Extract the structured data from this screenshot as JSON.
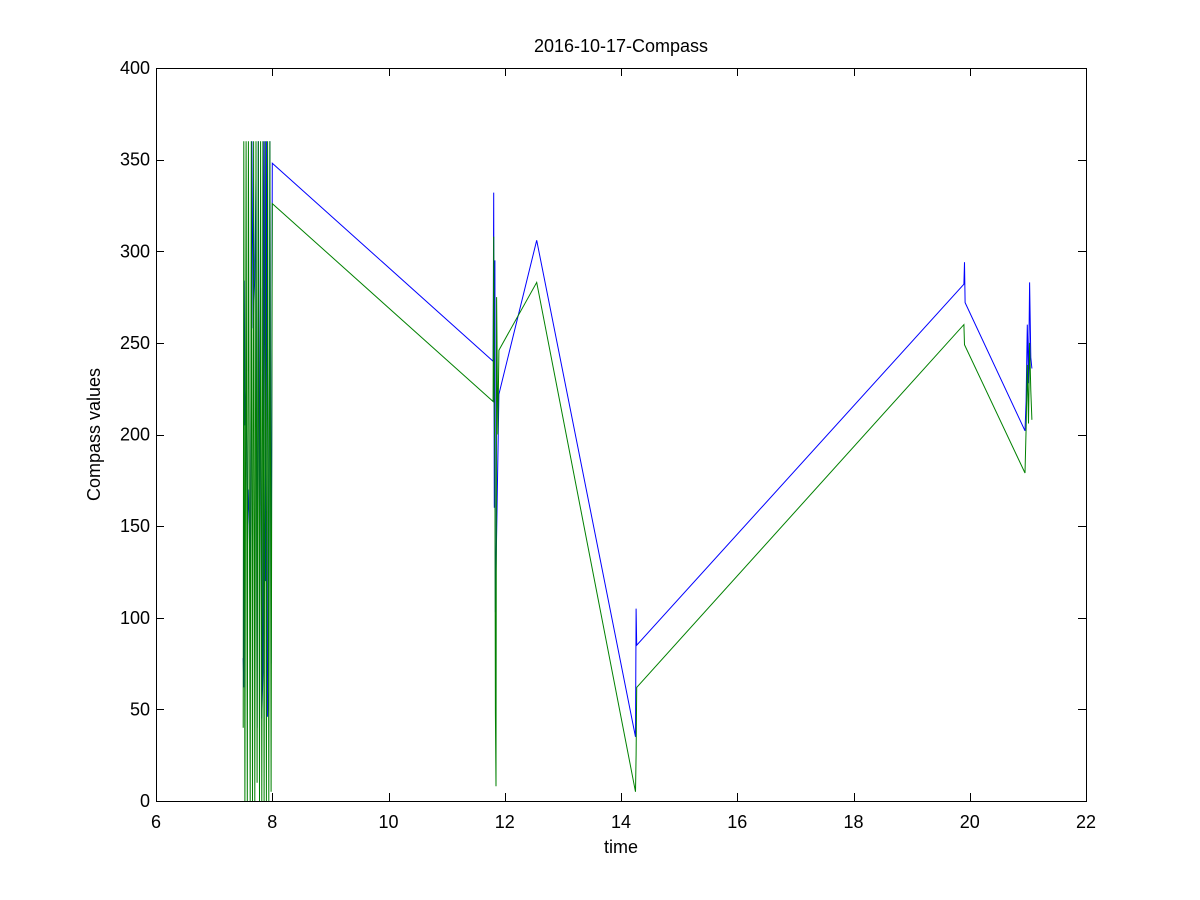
{
  "chart_data": {
    "type": "line",
    "title": "2016-10-17-Compass",
    "xlabel": "time",
    "ylabel": "Compass values",
    "xlim": [
      6,
      22
    ],
    "ylim": [
      0,
      400
    ],
    "xticks": [
      6,
      8,
      10,
      12,
      14,
      16,
      18,
      20,
      22
    ],
    "yticks": [
      0,
      50,
      100,
      150,
      200,
      250,
      300,
      350,
      400
    ],
    "grid": false,
    "legend": "none",
    "series": [
      {
        "color": "#0000ff",
        "x": [
          7.5,
          7.51,
          7.52,
          7.53,
          7.55,
          7.57,
          7.6,
          7.62,
          7.65,
          7.67,
          7.7,
          7.72,
          7.74,
          7.76,
          7.78,
          7.8,
          7.82,
          7.84,
          7.86,
          7.88,
          7.9,
          7.92,
          7.94,
          7.96,
          7.98,
          8.0,
          11.8,
          11.81,
          11.82,
          11.83,
          11.84,
          11.85,
          11.87,
          11.9,
          12.55,
          14.25,
          14.26,
          14.27,
          19.9,
          19.91,
          19.92,
          20.95,
          20.97,
          20.99,
          21.01,
          21.03,
          21.05,
          21.07
        ],
        "y": [
          78,
          62,
          284,
          205,
          226,
          148,
          170,
          97,
          360,
          258,
          286,
          340,
          40,
          360,
          150,
          280,
          45,
          70,
          360,
          120,
          360,
          46,
          60,
          360,
          75,
          348,
          240,
          332,
          160,
          295,
          103,
          125,
          165,
          222,
          306,
          35,
          105,
          85,
          282,
          294,
          272,
          202,
          218,
          260,
          228,
          283,
          242,
          236
        ]
      },
      {
        "color": "#008000",
        "x": [
          7.5,
          7.51,
          7.53,
          7.55,
          7.57,
          7.59,
          7.62,
          7.64,
          7.66,
          7.68,
          7.7,
          7.72,
          7.74,
          7.76,
          7.78,
          7.8,
          7.82,
          7.84,
          7.86,
          7.88,
          7.9,
          7.92,
          7.94,
          7.96,
          7.98,
          8.0,
          11.8,
          11.81,
          11.82,
          11.83,
          11.84,
          11.85,
          11.86,
          11.88,
          11.9,
          12.55,
          14.25,
          14.26,
          14.27,
          19.9,
          19.91,
          20.95,
          20.97,
          20.99,
          21.01,
          21.03,
          21.05,
          21.07
        ],
        "y": [
          40,
          360,
          0,
          360,
          0,
          360,
          0,
          360,
          0,
          360,
          0,
          360,
          10,
          360,
          0,
          360,
          0,
          360,
          0,
          360,
          0,
          360,
          0,
          360,
          5,
          326,
          218,
          308,
          214,
          180,
          48,
          8,
          275,
          200,
          246,
          283,
          5,
          25,
          62,
          260,
          249,
          179,
          203,
          238,
          206,
          250,
          224,
          208
        ]
      }
    ]
  }
}
